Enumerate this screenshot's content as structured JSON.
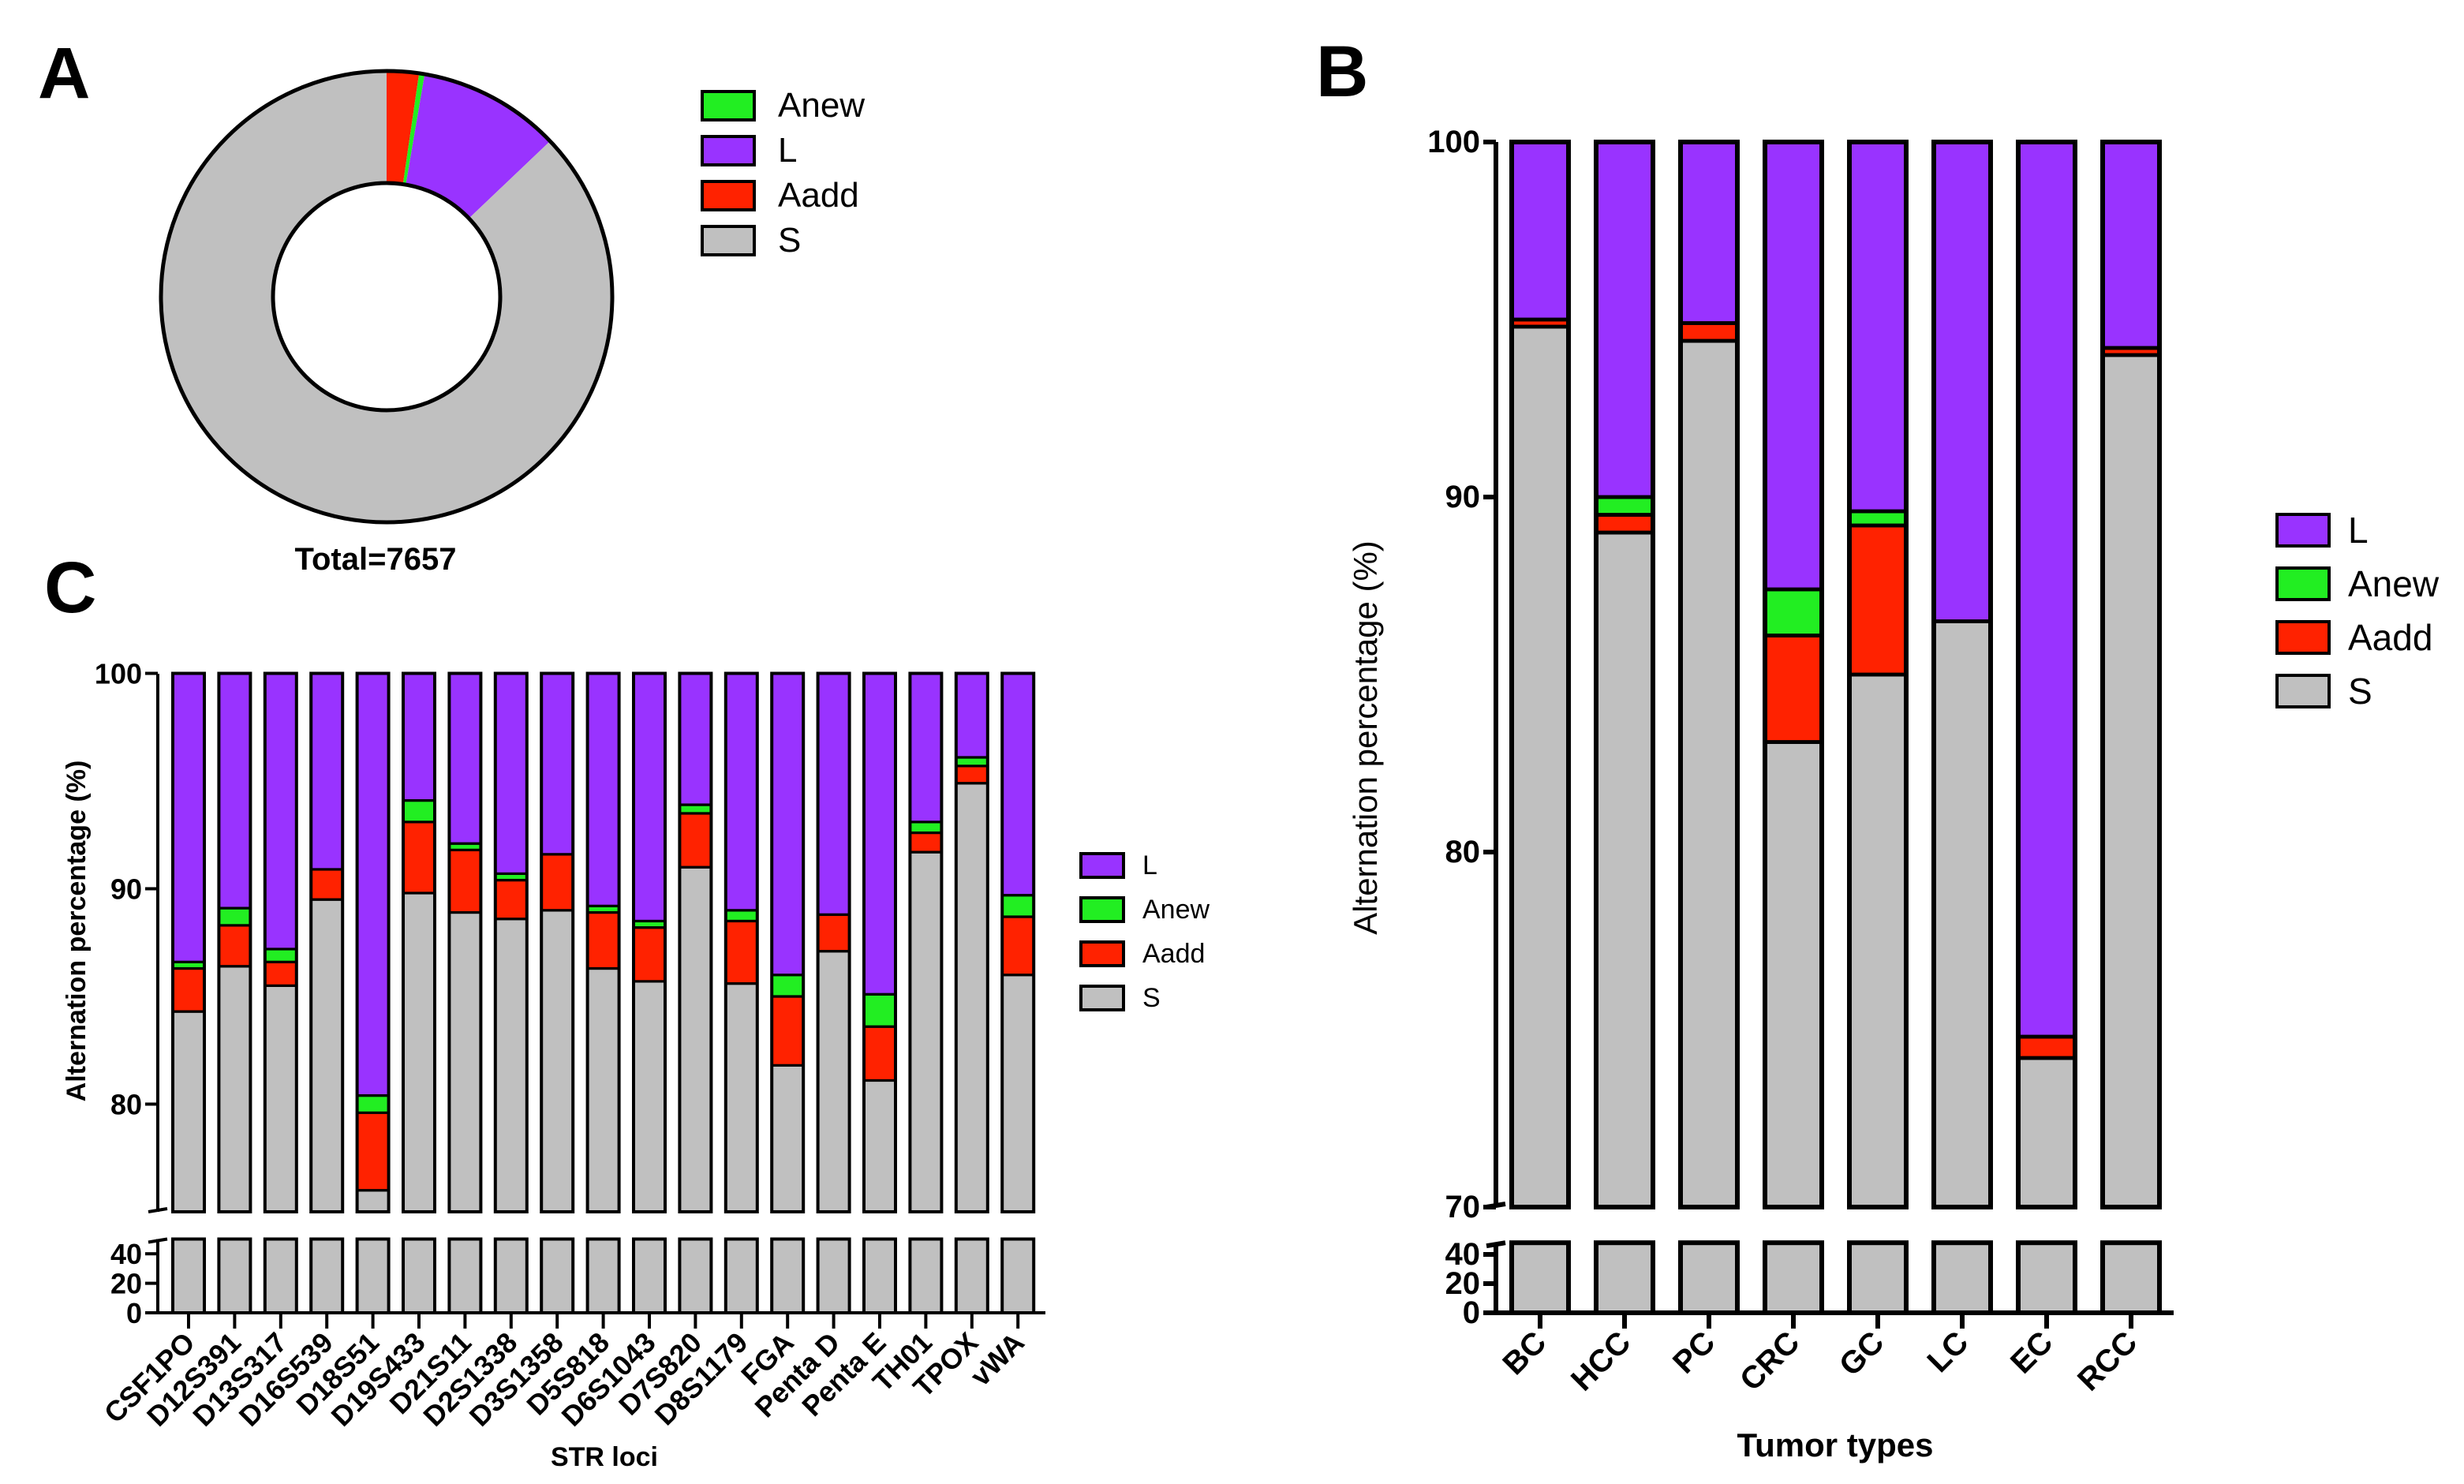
{
  "panel_labels": {
    "a": "A",
    "b": "B",
    "c": "C"
  },
  "colors": {
    "L": "#9933ff",
    "Anew": "#22ee22",
    "Aadd": "#ff2200",
    "S": "#c0c0c0"
  },
  "chart_data": [
    {
      "panel": "A",
      "type": "pie",
      "donut": true,
      "caption": "Total=7657",
      "legend": [
        "Anew",
        "L",
        "Aadd",
        "S"
      ],
      "legend_position": "right",
      "slices": [
        {
          "label": "Aadd",
          "value": 2.3
        },
        {
          "label": "Anew",
          "value": 0.4
        },
        {
          "label": "L",
          "value": 10.2
        },
        {
          "label": "S",
          "value": 87.1
        }
      ]
    },
    {
      "panel": "B",
      "type": "bar",
      "stacked": true,
      "xlabel": "Tumor types",
      "ylabel": "Alternation percentage (%)",
      "y_axis_break": [
        48,
        70
      ],
      "ylim": [
        0,
        100
      ],
      "yticks_upper": [
        70,
        80,
        90,
        100
      ],
      "yticks_lower": [
        0,
        20,
        40
      ],
      "legend": [
        "L",
        "Anew",
        "Aadd",
        "S"
      ],
      "legend_position": "right",
      "categories": [
        "BC",
        "HCC",
        "PC",
        "CRC",
        "GC",
        "LC",
        "EC",
        "RCC"
      ],
      "series": [
        {
          "name": "S",
          "values": [
            94.8,
            89.0,
            94.4,
            83.1,
            85.0,
            86.5,
            74.2,
            94.0
          ]
        },
        {
          "name": "Aadd",
          "values": [
            0.2,
            0.5,
            0.5,
            3.0,
            4.2,
            0.0,
            0.6,
            0.2
          ]
        },
        {
          "name": "Anew",
          "values": [
            0.0,
            0.5,
            0.0,
            1.3,
            0.4,
            0.0,
            0.0,
            0.0
          ]
        },
        {
          "name": "L",
          "values": [
            5.0,
            10.0,
            5.1,
            12.6,
            10.4,
            13.5,
            25.2,
            5.8
          ]
        }
      ]
    },
    {
      "panel": "C",
      "type": "bar",
      "stacked": true,
      "xlabel": "STR loci",
      "ylabel": "Alternation percentage (%)",
      "y_axis_break": [
        50,
        75
      ],
      "ylim": [
        0,
        100
      ],
      "yticks_upper": [
        80,
        90,
        100
      ],
      "yticks_lower": [
        0,
        20,
        40
      ],
      "legend": [
        "L",
        "Anew",
        "Aadd",
        "S"
      ],
      "legend_position": "right",
      "categories": [
        "CSF1PO",
        "D12S391",
        "D13S317",
        "D16S539",
        "D18S51",
        "D19S433",
        "D21S11",
        "D2S1338",
        "D3S1358",
        "D5S818",
        "D6S1043",
        "D7S820",
        "D8S1179",
        "FGA",
        "Penta D",
        "Penta E",
        "TH01",
        "TPOX",
        "vWA"
      ],
      "series": [
        {
          "name": "S",
          "values": [
            84.3,
            86.4,
            85.5,
            89.5,
            76.0,
            89.8,
            88.9,
            88.6,
            89.0,
            86.3,
            85.7,
            91.0,
            85.6,
            81.8,
            87.1,
            81.1,
            91.7,
            94.9,
            86.0
          ]
        },
        {
          "name": "Aadd",
          "values": [
            2.0,
            1.9,
            1.1,
            1.4,
            3.6,
            3.3,
            2.9,
            1.8,
            2.6,
            2.6,
            2.5,
            2.5,
            2.9,
            3.2,
            1.7,
            2.5,
            0.9,
            0.8,
            2.7
          ]
        },
        {
          "name": "Anew",
          "values": [
            0.3,
            0.8,
            0.6,
            0.0,
            0.8,
            1.0,
            0.3,
            0.3,
            0.0,
            0.3,
            0.3,
            0.4,
            0.5,
            1.0,
            0.0,
            1.5,
            0.5,
            0.4,
            1.0
          ]
        },
        {
          "name": "L",
          "values": [
            13.4,
            10.9,
            12.8,
            9.1,
            19.6,
            5.9,
            7.9,
            9.3,
            8.4,
            10.8,
            11.5,
            6.1,
            11.0,
            14.0,
            11.2,
            14.9,
            6.9,
            3.9,
            10.3
          ]
        }
      ]
    }
  ]
}
